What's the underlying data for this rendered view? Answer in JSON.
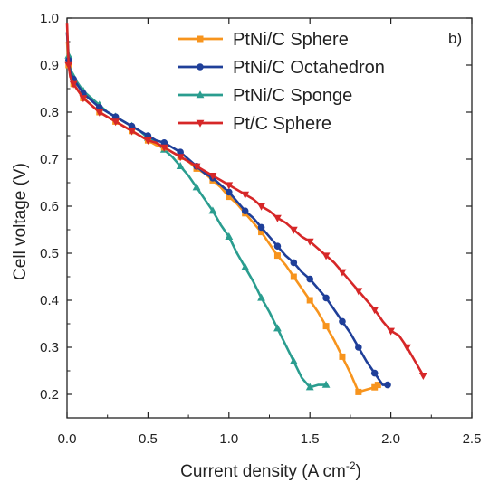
{
  "chart_data": {
    "type": "line",
    "title": "",
    "panel_label": "b)",
    "xlabel": "Current density (A cm",
    "xlabel_sup": "-2",
    "xlabel_end": ")",
    "ylabel": "Cell voltage (V)",
    "xlim": [
      0.0,
      2.5
    ],
    "ylim": [
      0.15,
      1.0
    ],
    "xticks": [
      0.0,
      0.5,
      1.0,
      1.5,
      2.0,
      2.5
    ],
    "xtick_labels": [
      "0.0",
      "0.5",
      "1.0",
      "1.5",
      "2.0",
      "2.5"
    ],
    "yticks": [
      0.2,
      0.3,
      0.4,
      0.5,
      0.6,
      0.7,
      0.8,
      0.9,
      1.0
    ],
    "ytick_labels": [
      "0.2",
      "0.3",
      "0.4",
      "0.5",
      "0.6",
      "0.7",
      "0.8",
      "0.9",
      "1.0"
    ],
    "grid": false,
    "legend_position": "top-right",
    "series": [
      {
        "name": "PtNi/C Sphere",
        "color": "#f7941d",
        "marker": "square",
        "x": [
          0.0,
          0.01,
          0.02,
          0.04,
          0.07,
          0.1,
          0.15,
          0.2,
          0.25,
          0.3,
          0.35,
          0.4,
          0.45,
          0.5,
          0.55,
          0.6,
          0.65,
          0.7,
          0.75,
          0.8,
          0.85,
          0.9,
          0.95,
          1.0,
          1.05,
          1.1,
          1.15,
          1.2,
          1.25,
          1.3,
          1.35,
          1.4,
          1.45,
          1.5,
          1.55,
          1.6,
          1.65,
          1.7,
          1.75,
          1.8,
          1.85,
          1.9,
          1.92
        ],
        "y": [
          0.95,
          0.9,
          0.88,
          0.86,
          0.845,
          0.83,
          0.815,
          0.8,
          0.79,
          0.78,
          0.77,
          0.76,
          0.75,
          0.74,
          0.73,
          0.725,
          0.715,
          0.705,
          0.695,
          0.68,
          0.67,
          0.655,
          0.64,
          0.62,
          0.605,
          0.585,
          0.565,
          0.545,
          0.52,
          0.495,
          0.475,
          0.45,
          0.425,
          0.4,
          0.375,
          0.345,
          0.315,
          0.28,
          0.245,
          0.205,
          0.21,
          0.215,
          0.22
        ]
      },
      {
        "name": "PtNi/C Octahedron",
        "color": "#1f3f99",
        "marker": "circle",
        "x": [
          0.0,
          0.01,
          0.02,
          0.04,
          0.07,
          0.1,
          0.15,
          0.2,
          0.25,
          0.3,
          0.35,
          0.4,
          0.45,
          0.5,
          0.55,
          0.6,
          0.65,
          0.7,
          0.75,
          0.8,
          0.85,
          0.9,
          0.95,
          1.0,
          1.05,
          1.1,
          1.15,
          1.2,
          1.25,
          1.3,
          1.35,
          1.4,
          1.45,
          1.5,
          1.55,
          1.6,
          1.65,
          1.7,
          1.75,
          1.8,
          1.85,
          1.9,
          1.95,
          1.98
        ],
        "y": [
          0.97,
          0.91,
          0.885,
          0.87,
          0.855,
          0.84,
          0.825,
          0.81,
          0.8,
          0.79,
          0.78,
          0.77,
          0.76,
          0.75,
          0.74,
          0.735,
          0.725,
          0.715,
          0.7,
          0.685,
          0.67,
          0.66,
          0.645,
          0.63,
          0.61,
          0.59,
          0.575,
          0.555,
          0.535,
          0.515,
          0.495,
          0.48,
          0.46,
          0.445,
          0.425,
          0.405,
          0.38,
          0.355,
          0.33,
          0.3,
          0.27,
          0.245,
          0.22,
          0.22
        ]
      },
      {
        "name": "PtNi/C Sponge",
        "color": "#2a9d8f",
        "marker": "triangle-up",
        "x": [
          0.0,
          0.01,
          0.02,
          0.04,
          0.07,
          0.1,
          0.15,
          0.2,
          0.25,
          0.3,
          0.35,
          0.4,
          0.45,
          0.5,
          0.55,
          0.6,
          0.65,
          0.7,
          0.75,
          0.8,
          0.85,
          0.9,
          0.95,
          1.0,
          1.05,
          1.1,
          1.15,
          1.2,
          1.25,
          1.3,
          1.35,
          1.4,
          1.45,
          1.5,
          1.55,
          1.6
        ],
        "y": [
          0.97,
          0.92,
          0.895,
          0.875,
          0.86,
          0.845,
          0.83,
          0.815,
          0.8,
          0.79,
          0.78,
          0.77,
          0.76,
          0.745,
          0.735,
          0.72,
          0.705,
          0.685,
          0.665,
          0.64,
          0.615,
          0.59,
          0.56,
          0.535,
          0.5,
          0.47,
          0.44,
          0.405,
          0.375,
          0.34,
          0.305,
          0.27,
          0.235,
          0.215,
          0.22,
          0.22
        ]
      },
      {
        "name": "Pt/C Sphere",
        "color": "#d62728",
        "marker": "triangle-down",
        "x": [
          0.0,
          0.01,
          0.02,
          0.04,
          0.07,
          0.1,
          0.15,
          0.2,
          0.25,
          0.3,
          0.35,
          0.4,
          0.45,
          0.5,
          0.55,
          0.6,
          0.65,
          0.7,
          0.75,
          0.8,
          0.85,
          0.9,
          0.95,
          1.0,
          1.05,
          1.1,
          1.15,
          1.2,
          1.25,
          1.3,
          1.35,
          1.4,
          1.45,
          1.5,
          1.55,
          1.6,
          1.65,
          1.7,
          1.75,
          1.8,
          1.85,
          1.9,
          1.95,
          2.0,
          2.05,
          2.1,
          2.15,
          2.2
        ],
        "y": [
          0.99,
          0.9,
          0.875,
          0.86,
          0.845,
          0.83,
          0.815,
          0.8,
          0.79,
          0.78,
          0.77,
          0.76,
          0.75,
          0.74,
          0.735,
          0.725,
          0.715,
          0.705,
          0.695,
          0.685,
          0.675,
          0.665,
          0.655,
          0.645,
          0.635,
          0.625,
          0.615,
          0.6,
          0.59,
          0.575,
          0.565,
          0.55,
          0.535,
          0.525,
          0.51,
          0.495,
          0.48,
          0.46,
          0.44,
          0.42,
          0.4,
          0.38,
          0.355,
          0.335,
          0.325,
          0.3,
          0.27,
          0.24
        ]
      }
    ]
  }
}
